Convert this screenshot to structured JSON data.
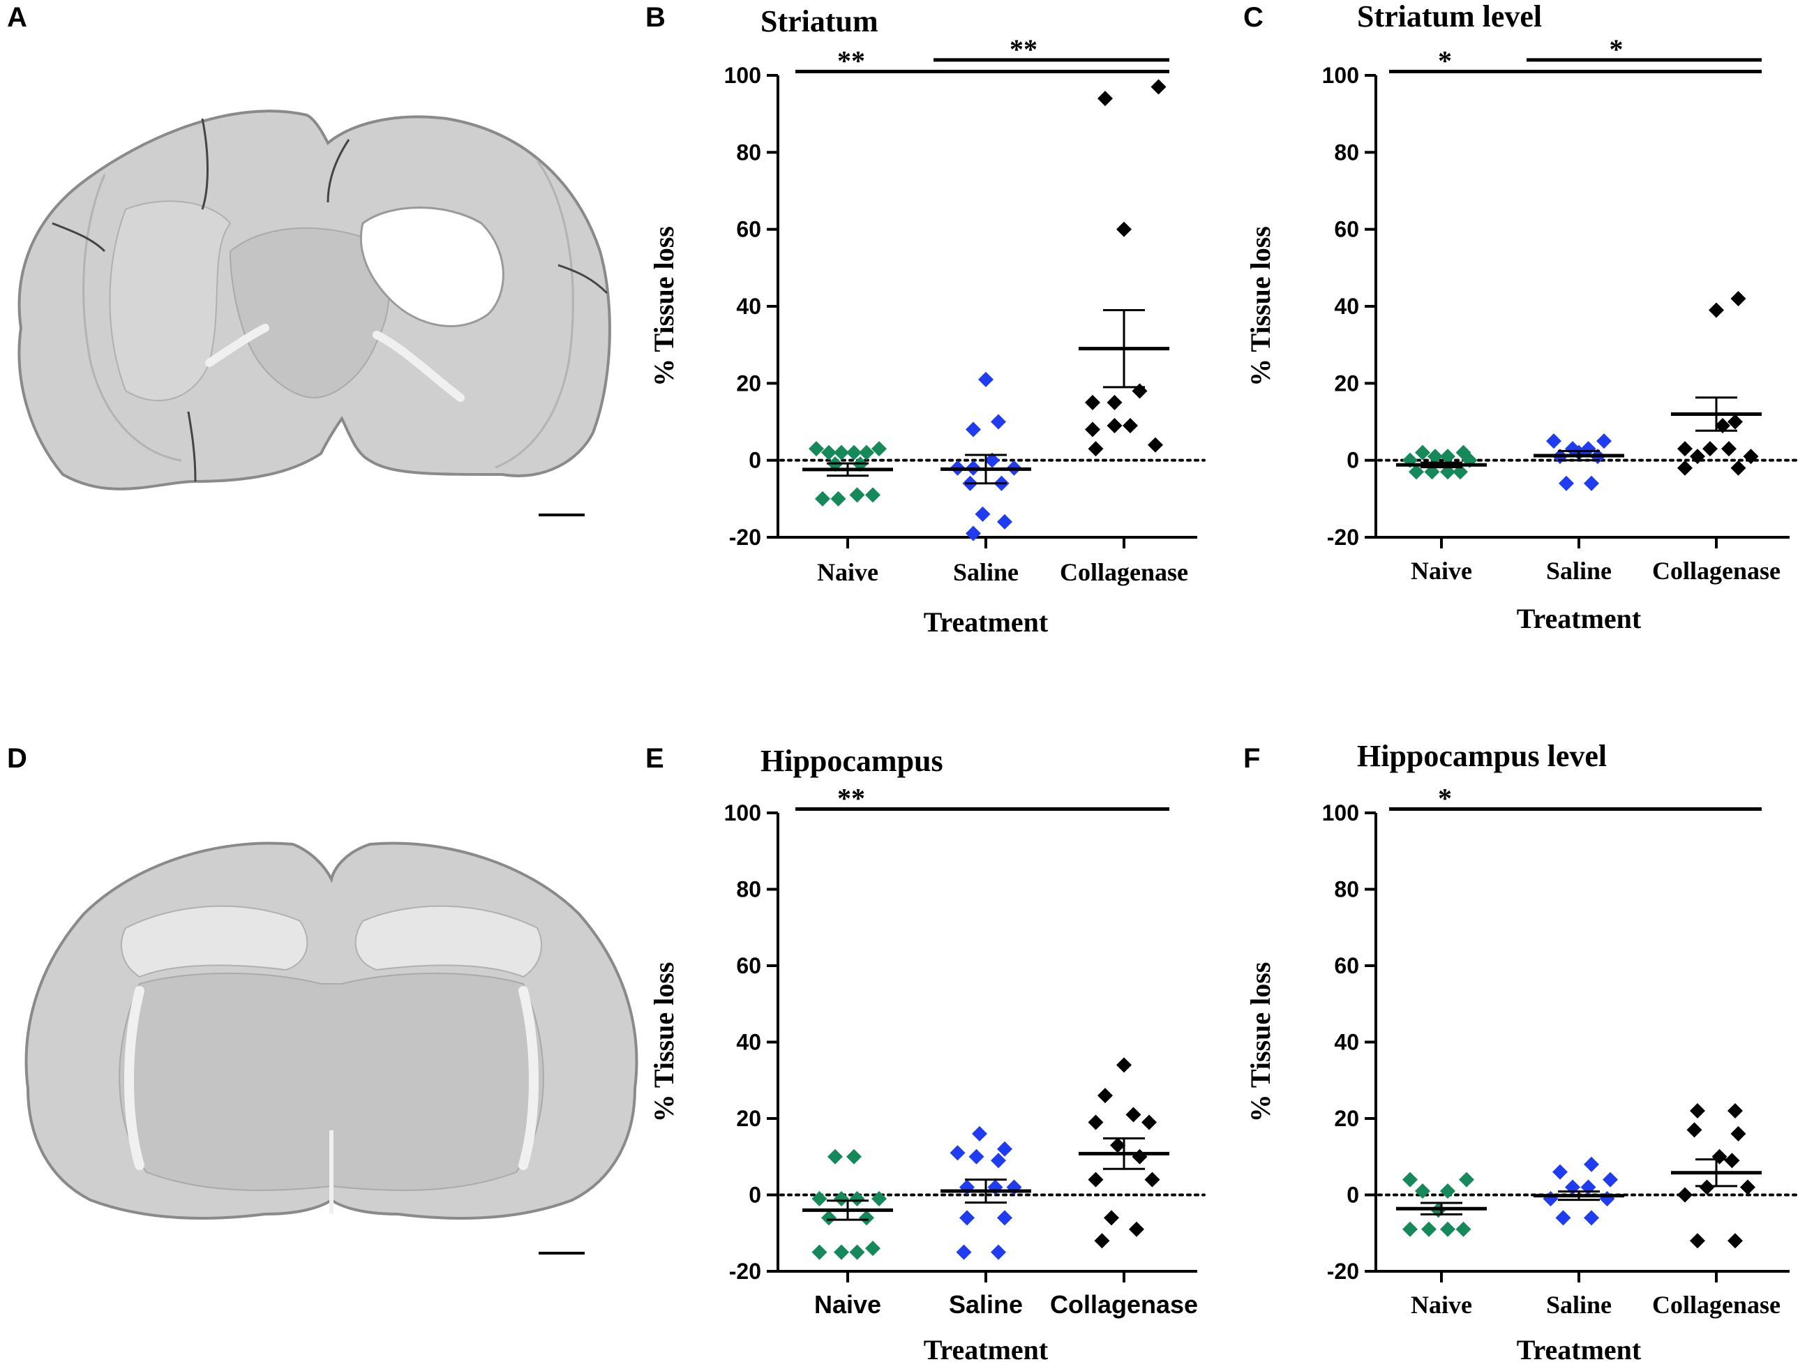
{
  "panels": {
    "a": "A",
    "b": "B",
    "c": "C",
    "d": "D",
    "e": "E",
    "f": "F"
  },
  "images": {
    "top": "coronal-brain-section-striatum",
    "bottom": "coronal-brain-section-hippocampus"
  },
  "colors": {
    "naive": "#16895a",
    "saline": "#1f3cf0",
    "collagenase": "#000000",
    "tissue_bg": "#c9c9c9",
    "tissue_edge": "#8a8a8a"
  },
  "chart_data": [
    {
      "id": "b",
      "type": "scatter",
      "title": "Striatum",
      "xlabel": "Treatment",
      "ylabel": "% Tissue loss",
      "ylim": [
        -20,
        100
      ],
      "yticks": [
        "-20",
        "0",
        "20",
        "40",
        "60",
        "80",
        "100"
      ],
      "categories": [
        "Naive",
        "Saline",
        "Collagenase"
      ],
      "reference_line": 0,
      "series": [
        {
          "name": "Naive",
          "color": "#16895a",
          "mean": -2.4,
          "sem": 1.6,
          "points": [
            [
              -0.5,
              3
            ],
            [
              -0.3,
              2
            ],
            [
              -0.1,
              2
            ],
            [
              0.1,
              2
            ],
            [
              0.3,
              2
            ],
            [
              0.5,
              3
            ],
            [
              -0.2,
              -1
            ],
            [
              0.2,
              -1
            ],
            [
              -0.4,
              -10
            ],
            [
              -0.15,
              -10
            ],
            [
              0.15,
              -9
            ],
            [
              0.4,
              -9
            ]
          ]
        },
        {
          "name": "Saline",
          "color": "#1f3cf0",
          "mean": -2.3,
          "sem": 3.7,
          "points": [
            [
              0.0,
              21
            ],
            [
              -0.2,
              8
            ],
            [
              0.2,
              10
            ],
            [
              -0.45,
              -2
            ],
            [
              -0.2,
              -2
            ],
            [
              0.1,
              0
            ],
            [
              0.45,
              -2
            ],
            [
              -0.25,
              -6
            ],
            [
              0.25,
              -6
            ],
            [
              -0.05,
              -14
            ],
            [
              0.3,
              -16
            ],
            [
              -0.2,
              -19
            ]
          ]
        },
        {
          "name": "Collagenase",
          "color": "#000000",
          "mean": 29.0,
          "sem": 10.0,
          "points": [
            [
              -0.3,
              94
            ],
            [
              0.55,
              97
            ],
            [
              0.0,
              60
            ],
            [
              0.25,
              18
            ],
            [
              -0.5,
              15
            ],
            [
              -0.15,
              15
            ],
            [
              0.1,
              9
            ],
            [
              -0.5,
              8
            ],
            [
              -0.15,
              9
            ],
            [
              -0.45,
              3
            ],
            [
              0.5,
              4
            ]
          ]
        }
      ],
      "significance": [
        {
          "label": "**",
          "from": 0,
          "to": 2,
          "level": 101
        },
        {
          "label": "**",
          "from": 1,
          "to": 2,
          "level": 104
        }
      ]
    },
    {
      "id": "c",
      "type": "scatter",
      "title": "Striatum level",
      "xlabel": "Treatment",
      "ylabel": "% Tissue loss",
      "ylim": [
        -20,
        100
      ],
      "yticks": [
        "-20",
        "0",
        "20",
        "40",
        "60",
        "80",
        "100"
      ],
      "categories": [
        "Naive",
        "Saline",
        "Collagenase"
      ],
      "reference_line": 0,
      "series": [
        {
          "name": "Naive",
          "color": "#16895a",
          "mean": -1.2,
          "sem": 0.6,
          "points": [
            [
              -0.3,
              2
            ],
            [
              -0.1,
              1
            ],
            [
              0.1,
              1
            ],
            [
              0.35,
              2
            ],
            [
              -0.4,
              -3
            ],
            [
              -0.15,
              -3
            ],
            [
              0.1,
              -3
            ],
            [
              0.3,
              -3
            ],
            [
              -0.5,
              0
            ],
            [
              0.45,
              0
            ]
          ]
        },
        {
          "name": "Saline",
          "color": "#1f3cf0",
          "mean": 1.2,
          "sem": 1.2,
          "points": [
            [
              -0.4,
              5
            ],
            [
              0.4,
              5
            ],
            [
              -0.1,
              3
            ],
            [
              0.15,
              3
            ],
            [
              -0.3,
              1
            ],
            [
              0.3,
              1
            ],
            [
              0.0,
              2
            ],
            [
              -0.2,
              -6
            ],
            [
              0.2,
              -6
            ]
          ]
        },
        {
          "name": "Collagenase",
          "color": "#000000",
          "mean": 12.0,
          "sem": 4.3,
          "points": [
            [
              0.0,
              39
            ],
            [
              0.35,
              42
            ],
            [
              0.1,
              9
            ],
            [
              0.3,
              10
            ],
            [
              -0.3,
              1
            ],
            [
              0.55,
              1
            ],
            [
              -0.5,
              3
            ],
            [
              -0.1,
              3
            ],
            [
              0.2,
              3
            ],
            [
              -0.5,
              -2
            ],
            [
              0.35,
              -2
            ]
          ]
        }
      ],
      "significance": [
        {
          "label": "*",
          "from": 0,
          "to": 2,
          "level": 101
        },
        {
          "label": "*",
          "from": 1,
          "to": 2,
          "level": 104
        }
      ]
    },
    {
      "id": "e",
      "type": "scatter",
      "title": "Hippocampus",
      "xlabel": "Treatment",
      "ylabel": "% Tissue loss",
      "ylim": [
        -20,
        100
      ],
      "yticks": [
        "-20",
        "0",
        "20",
        "40",
        "60",
        "80",
        "100"
      ],
      "categories": [
        "Naive",
        "Saline",
        "Collagenase"
      ],
      "reference_line": 0,
      "series": [
        {
          "name": "Naive",
          "color": "#16895a",
          "mean": -4.0,
          "sem": 2.5,
          "points": [
            [
              -0.2,
              10
            ],
            [
              0.1,
              10
            ],
            [
              -0.45,
              -1
            ],
            [
              -0.1,
              -1
            ],
            [
              0.15,
              -1
            ],
            [
              0.5,
              -1
            ],
            [
              -0.3,
              -6
            ],
            [
              0.3,
              -6
            ],
            [
              -0.45,
              -15
            ],
            [
              -0.1,
              -15
            ],
            [
              0.15,
              -15
            ],
            [
              0.4,
              -14
            ]
          ]
        },
        {
          "name": "Saline",
          "color": "#1f3cf0",
          "mean": 1.0,
          "sem": 3.0,
          "points": [
            [
              -0.1,
              16
            ],
            [
              0.3,
              12
            ],
            [
              -0.45,
              11
            ],
            [
              -0.15,
              10
            ],
            [
              0.2,
              9
            ],
            [
              -0.3,
              2
            ],
            [
              0.15,
              2
            ],
            [
              0.45,
              2
            ],
            [
              -0.3,
              -6
            ],
            [
              0.3,
              -6
            ],
            [
              -0.35,
              -15
            ],
            [
              0.2,
              -15
            ]
          ]
        },
        {
          "name": "Collagenase",
          "color": "#000000",
          "mean": 10.8,
          "sem": 4.0,
          "points": [
            [
              0.0,
              34
            ],
            [
              -0.3,
              26
            ],
            [
              0.15,
              21
            ],
            [
              -0.45,
              19
            ],
            [
              0.4,
              19
            ],
            [
              -0.1,
              13
            ],
            [
              0.25,
              10
            ],
            [
              -0.45,
              4
            ],
            [
              0.45,
              4
            ],
            [
              -0.2,
              -6
            ],
            [
              0.2,
              -9
            ],
            [
              -0.35,
              -12
            ]
          ]
        }
      ],
      "significance": [
        {
          "label": "**",
          "from": 0,
          "to": 2,
          "level": 101
        }
      ]
    },
    {
      "id": "f",
      "type": "scatter",
      "title": "Hippocampus level",
      "xlabel": "Treatment",
      "ylabel": "% Tissue loss",
      "ylim": [
        -20,
        100
      ],
      "yticks": [
        "-20",
        "0",
        "20",
        "40",
        "60",
        "80",
        "100"
      ],
      "categories": [
        "Naive",
        "Saline",
        "Collagenase"
      ],
      "reference_line": 0,
      "series": [
        {
          "name": "Naive",
          "color": "#16895a",
          "mean": -3.6,
          "sem": 1.5,
          "points": [
            [
              -0.5,
              4
            ],
            [
              0.4,
              4
            ],
            [
              -0.3,
              1
            ],
            [
              0.1,
              1
            ],
            [
              -0.5,
              -9
            ],
            [
              -0.2,
              -9
            ],
            [
              0.1,
              -9
            ],
            [
              0.35,
              -9
            ],
            [
              -0.05,
              -4
            ]
          ]
        },
        {
          "name": "Saline",
          "color": "#1f3cf0",
          "mean": -0.2,
          "sem": 1.1,
          "points": [
            [
              -0.3,
              6
            ],
            [
              0.2,
              8
            ],
            [
              0.5,
              4
            ],
            [
              -0.1,
              2
            ],
            [
              0.15,
              2
            ],
            [
              -0.45,
              -1
            ],
            [
              0.45,
              -1
            ],
            [
              -0.25,
              -6
            ],
            [
              0.2,
              -6
            ]
          ]
        },
        {
          "name": "Collagenase",
          "color": "#000000",
          "mean": 5.8,
          "sem": 3.5,
          "points": [
            [
              -0.3,
              22
            ],
            [
              0.3,
              22
            ],
            [
              -0.35,
              17
            ],
            [
              0.35,
              16
            ],
            [
              0.05,
              10
            ],
            [
              0.25,
              9
            ],
            [
              -0.5,
              0
            ],
            [
              -0.15,
              2
            ],
            [
              0.5,
              2
            ],
            [
              -0.3,
              -12
            ],
            [
              0.3,
              -12
            ]
          ]
        }
      ],
      "significance": [
        {
          "label": "*",
          "from": 0,
          "to": 2,
          "level": 101
        }
      ]
    }
  ]
}
